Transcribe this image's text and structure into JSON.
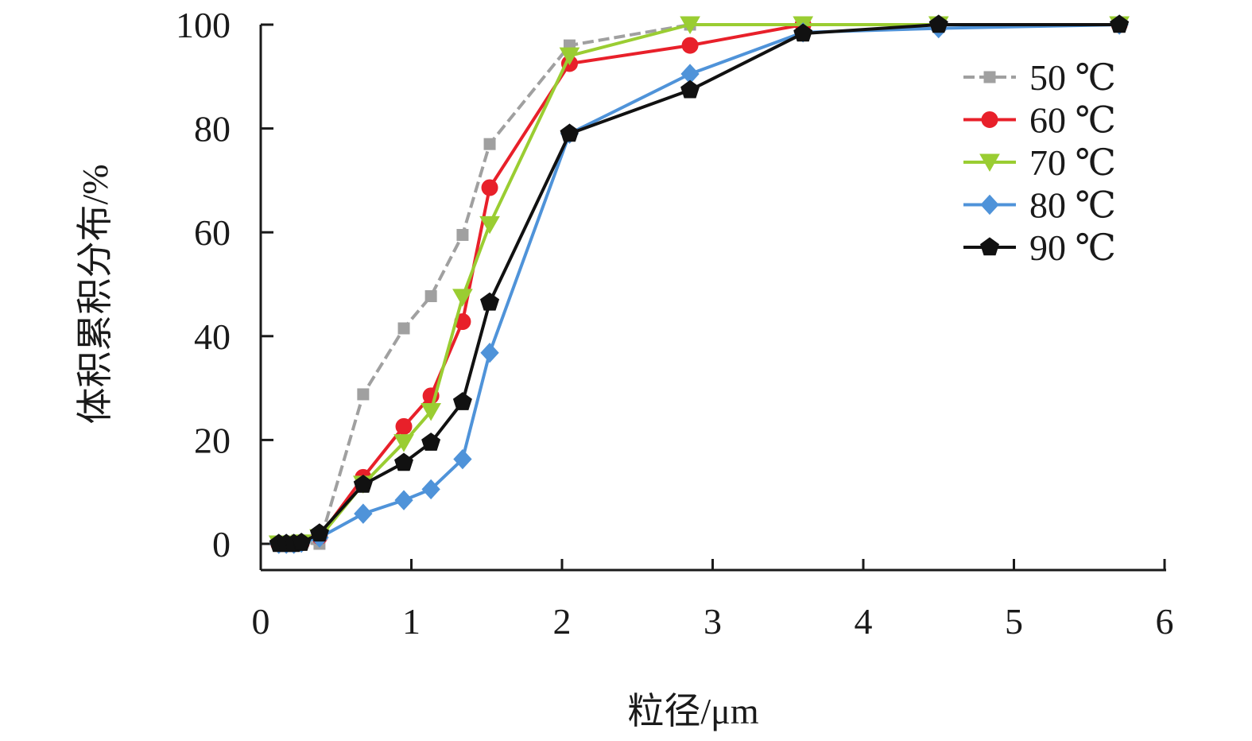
{
  "chart_data": {
    "type": "line",
    "title": "",
    "xlabel": "粒径/μm",
    "ylabel": "体积累积分布/%",
    "xlim": [
      0,
      6
    ],
    "ylim": [
      0,
      100
    ],
    "x_ticks": [
      "0",
      "1",
      "2",
      "3",
      "4",
      "5",
      "6"
    ],
    "y_ticks": [
      "0",
      "20",
      "40",
      "60",
      "80",
      "100"
    ],
    "grid": false,
    "legend_position": "top-right",
    "series": [
      {
        "name": "50 ℃",
        "color": "#a0a0a0",
        "marker": "square",
        "dashed": true,
        "points": [
          [
            0.12,
            0
          ],
          [
            0.17,
            0
          ],
          [
            0.22,
            0
          ],
          [
            0.27,
            0.2
          ],
          [
            0.39,
            0
          ],
          [
            0.68,
            28.8
          ],
          [
            0.95,
            41.5
          ],
          [
            1.13,
            47.7
          ],
          [
            1.34,
            59.5
          ],
          [
            1.52,
            77
          ],
          [
            2.05,
            96
          ],
          [
            2.85,
            100
          ],
          [
            3.6,
            100
          ],
          [
            4.5,
            100
          ],
          [
            5.7,
            100
          ]
        ]
      },
      {
        "name": "60 ℃",
        "color": "#e8202a",
        "marker": "circle",
        "dashed": false,
        "points": [
          [
            0.12,
            0
          ],
          [
            0.17,
            0
          ],
          [
            0.22,
            0
          ],
          [
            0.27,
            0.2
          ],
          [
            0.39,
            1.4
          ],
          [
            0.68,
            12.8
          ],
          [
            0.95,
            22.6
          ],
          [
            1.13,
            28.5
          ],
          [
            1.34,
            42.8
          ],
          [
            1.52,
            68.6
          ],
          [
            2.05,
            92.5
          ],
          [
            2.85,
            96
          ],
          [
            3.6,
            100
          ],
          [
            4.5,
            100
          ],
          [
            5.7,
            100
          ]
        ]
      },
      {
        "name": "70 ℃",
        "color": "#9acd32",
        "marker": "triangle-down",
        "dashed": false,
        "points": [
          [
            0.12,
            0
          ],
          [
            0.17,
            0
          ],
          [
            0.22,
            0
          ],
          [
            0.27,
            0.2
          ],
          [
            0.39,
            1.2
          ],
          [
            0.68,
            11.5
          ],
          [
            0.95,
            19.5
          ],
          [
            1.13,
            25.5
          ],
          [
            1.34,
            47.5
          ],
          [
            1.52,
            61.5
          ],
          [
            2.05,
            94
          ],
          [
            2.85,
            100
          ],
          [
            3.6,
            100
          ],
          [
            4.5,
            100
          ],
          [
            5.7,
            100
          ]
        ]
      },
      {
        "name": "80 ℃",
        "color": "#4f93d9",
        "marker": "diamond",
        "dashed": false,
        "points": [
          [
            0.12,
            0
          ],
          [
            0.17,
            0
          ],
          [
            0.22,
            0
          ],
          [
            0.27,
            0.2
          ],
          [
            0.39,
            1.2
          ],
          [
            0.68,
            5.8
          ],
          [
            0.95,
            8.4
          ],
          [
            1.13,
            10.5
          ],
          [
            1.34,
            16.3
          ],
          [
            1.52,
            36.8
          ],
          [
            2.05,
            79
          ],
          [
            2.85,
            90.5
          ],
          [
            3.6,
            98.5
          ],
          [
            4.5,
            99.3
          ],
          [
            5.7,
            100
          ]
        ]
      },
      {
        "name": "90 ℃",
        "color": "#111111",
        "marker": "pentagon",
        "dashed": false,
        "points": [
          [
            0.12,
            0
          ],
          [
            0.17,
            0
          ],
          [
            0.22,
            0
          ],
          [
            0.27,
            0.2
          ],
          [
            0.39,
            2
          ],
          [
            0.68,
            11.4
          ],
          [
            0.95,
            15.6
          ],
          [
            1.13,
            19.5
          ],
          [
            1.34,
            27.3
          ],
          [
            1.52,
            46.5
          ],
          [
            2.05,
            79
          ],
          [
            2.85,
            87.4
          ],
          [
            3.6,
            98.3
          ],
          [
            4.5,
            100
          ],
          [
            5.7,
            100
          ]
        ]
      }
    ]
  }
}
